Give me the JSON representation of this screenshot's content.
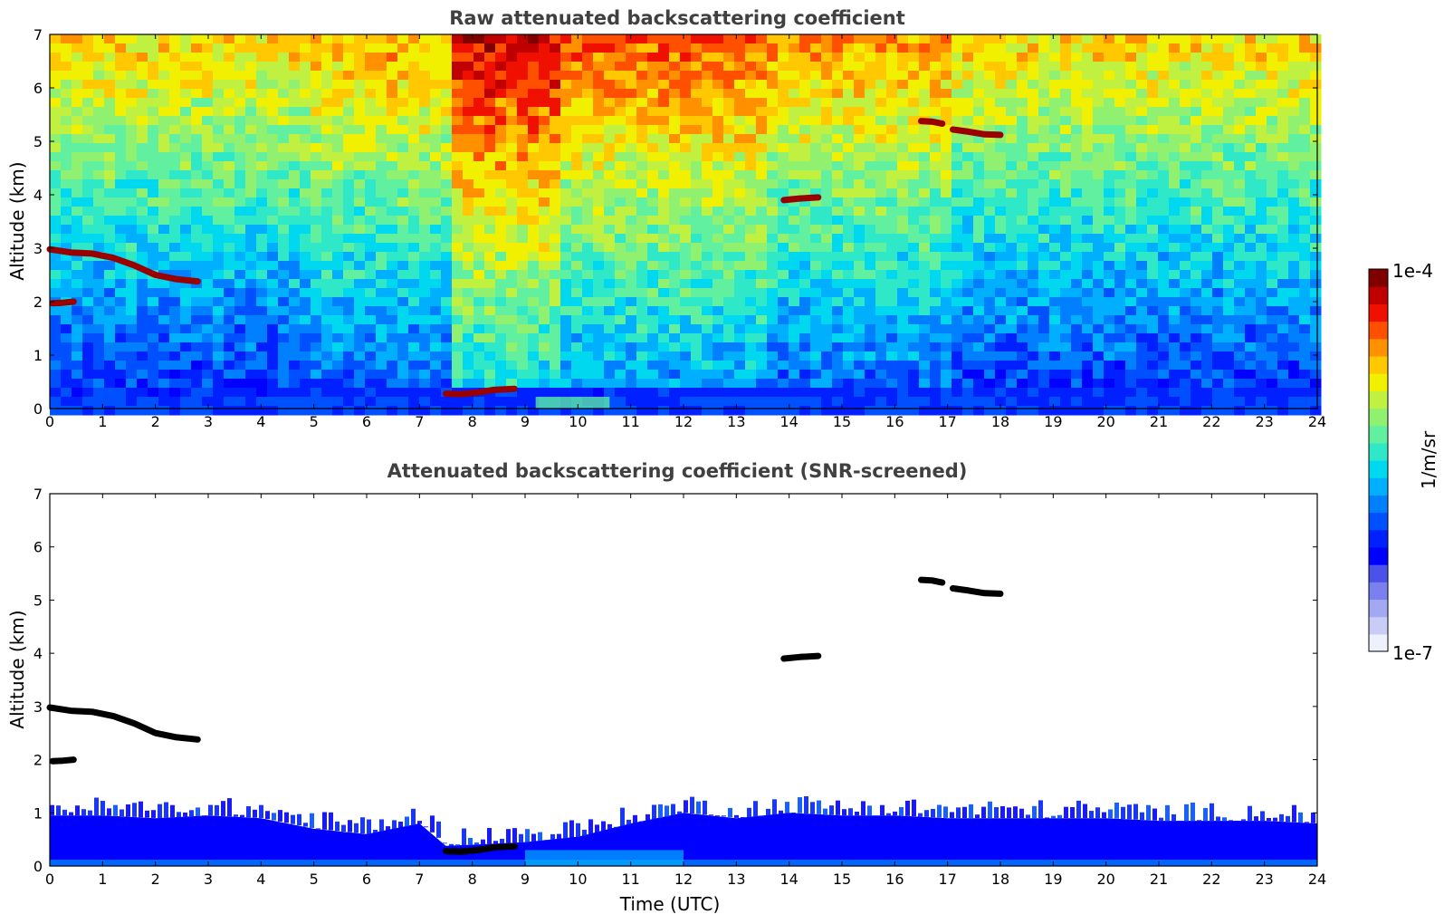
{
  "chart_data": [
    {
      "type": "heatmap",
      "title": "Raw attenuated backscattering coefficient",
      "xlabel": "",
      "ylabel": "Altitude (km)",
      "xlim": [
        0,
        24
      ],
      "ylim": [
        0,
        7
      ],
      "x_ticks": [
        "0",
        "1",
        "2",
        "3",
        "4",
        "5",
        "6",
        "7",
        "8",
        "9",
        "10",
        "11",
        "12",
        "13",
        "14",
        "15",
        "16",
        "17",
        "18",
        "19",
        "20",
        "21",
        "22",
        "23",
        "24"
      ],
      "y_ticks": [
        "0",
        "1",
        "2",
        "3",
        "4",
        "5",
        "6",
        "7"
      ],
      "cloud_layers": [
        {
          "points": [
            [
              0,
              2.98
            ],
            [
              0.4,
              2.92
            ],
            [
              0.8,
              2.9
            ],
            [
              1.2,
              2.82
            ],
            [
              1.6,
              2.68
            ],
            [
              2.0,
              2.5
            ],
            [
              2.4,
              2.42
            ],
            [
              2.8,
              2.38
            ]
          ]
        },
        {
          "points": [
            [
              0.05,
              1.97
            ],
            [
              0.25,
              1.98
            ],
            [
              0.45,
              2.0
            ]
          ]
        },
        {
          "points": [
            [
              7.5,
              0.28
            ],
            [
              7.8,
              0.27
            ],
            [
              8.1,
              0.3
            ],
            [
              8.4,
              0.35
            ],
            [
              8.8,
              0.37
            ]
          ]
        },
        {
          "points": [
            [
              13.9,
              3.9
            ],
            [
              14.2,
              3.93
            ],
            [
              14.55,
              3.95
            ]
          ]
        },
        {
          "points": [
            [
              16.5,
              5.38
            ],
            [
              16.7,
              5.37
            ],
            [
              16.9,
              5.33
            ]
          ]
        },
        {
          "points": [
            [
              17.1,
              5.22
            ],
            [
              17.4,
              5.18
            ],
            [
              17.7,
              5.13
            ],
            [
              18.0,
              5.12
            ]
          ]
        }
      ]
    },
    {
      "type": "heatmap",
      "title": "Attenuated backscattering coefficient (SNR-screened)",
      "xlabel": "Time (UTC)",
      "ylabel": "Altitude (km)",
      "xlim": [
        0,
        24
      ],
      "ylim": [
        0,
        7
      ],
      "x_ticks": [
        "0",
        "1",
        "2",
        "3",
        "4",
        "5",
        "6",
        "7",
        "8",
        "9",
        "10",
        "11",
        "12",
        "13",
        "14",
        "15",
        "16",
        "17",
        "18",
        "19",
        "20",
        "21",
        "22",
        "23",
        "24"
      ],
      "y_ticks": [
        "0",
        "1",
        "2",
        "3",
        "4",
        "5",
        "6",
        "7"
      ],
      "boundary_layer_top": [
        [
          0,
          0.95
        ],
        [
          1,
          0.95
        ],
        [
          2,
          0.9
        ],
        [
          3,
          0.95
        ],
        [
          4,
          0.9
        ],
        [
          5,
          0.7
        ],
        [
          6,
          0.6
        ],
        [
          7,
          0.8
        ],
        [
          7.5,
          0.38
        ],
        [
          8,
          0.4
        ],
        [
          9,
          0.45
        ],
        [
          10,
          0.55
        ],
        [
          11,
          0.8
        ],
        [
          12,
          1.0
        ],
        [
          13,
          0.9
        ],
        [
          14,
          1.0
        ],
        [
          15,
          0.95
        ],
        [
          16,
          0.95
        ],
        [
          17,
          0.9
        ],
        [
          18,
          0.9
        ],
        [
          19,
          0.9
        ],
        [
          20,
          0.9
        ],
        [
          21,
          0.85
        ],
        [
          22,
          0.85
        ],
        [
          23,
          0.85
        ],
        [
          24,
          0.8
        ]
      ],
      "cloud_layers": [
        {
          "points": [
            [
              0,
              2.98
            ],
            [
              0.4,
              2.92
            ],
            [
              0.8,
              2.9
            ],
            [
              1.2,
              2.82
            ],
            [
              1.6,
              2.68
            ],
            [
              2.0,
              2.5
            ],
            [
              2.4,
              2.42
            ],
            [
              2.8,
              2.38
            ]
          ]
        },
        {
          "points": [
            [
              0.05,
              1.97
            ],
            [
              0.25,
              1.98
            ],
            [
              0.45,
              2.0
            ]
          ]
        },
        {
          "points": [
            [
              7.5,
              0.28
            ],
            [
              7.8,
              0.27
            ],
            [
              8.1,
              0.3
            ],
            [
              8.4,
              0.35
            ],
            [
              8.8,
              0.37
            ]
          ]
        },
        {
          "points": [
            [
              13.9,
              3.9
            ],
            [
              14.2,
              3.93
            ],
            [
              14.55,
              3.95
            ]
          ]
        },
        {
          "points": [
            [
              16.5,
              5.38
            ],
            [
              16.7,
              5.37
            ],
            [
              16.9,
              5.33
            ]
          ]
        },
        {
          "points": [
            [
              17.1,
              5.22
            ],
            [
              17.4,
              5.18
            ],
            [
              17.7,
              5.13
            ],
            [
              18.0,
              5.12
            ]
          ]
        }
      ]
    }
  ],
  "colorbar": {
    "label": "1/m/sr",
    "max_label": "1e-4",
    "min_label": "1e-7",
    "colors": [
      "#eef0fb",
      "#c9ccf6",
      "#a3a8f2",
      "#7a80ee",
      "#4a52ea",
      "#0000ff",
      "#0020ff",
      "#0050ff",
      "#0080ff",
      "#00b0ff",
      "#00d8f0",
      "#2ee8c8",
      "#60f0a0",
      "#90f070",
      "#c0f040",
      "#f0f000",
      "#ffc800",
      "#ff9000",
      "#ff5000",
      "#f01000",
      "#c00000",
      "#800000"
    ]
  }
}
